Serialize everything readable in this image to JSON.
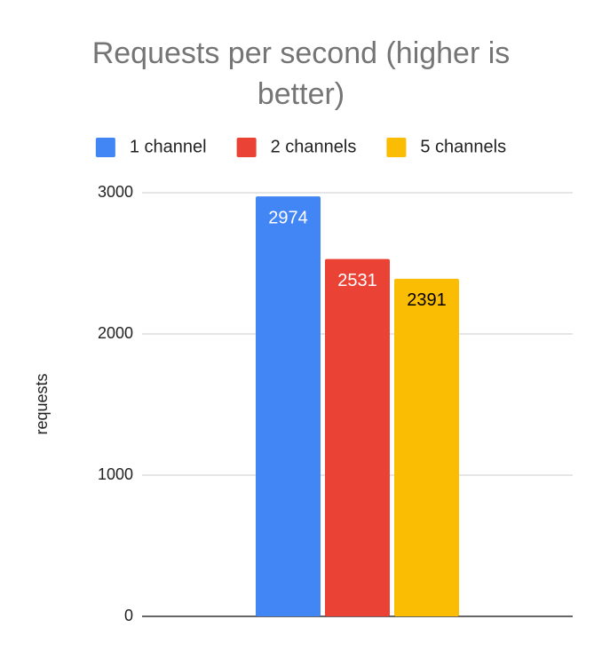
{
  "chart_data": {
    "type": "bar",
    "title": "Requests per second (higher is better)",
    "y_label": "requests",
    "categories": [
      null
    ],
    "series": [
      {
        "name": "1 channel",
        "color": "#4285f4",
        "label_color": "#ffffff",
        "values": [
          2974
        ]
      },
      {
        "name": "2 channels",
        "color": "#ea4335",
        "label_color": "#ffffff",
        "values": [
          2531
        ]
      },
      {
        "name": "5 channels",
        "color": "#fbbc04",
        "label_color": "#000000",
        "values": [
          2391
        ]
      }
    ],
    "ylim": [
      0,
      3000
    ],
    "yticks": [
      0,
      1000,
      2000,
      3000
    ],
    "grid": true,
    "legend": "top"
  }
}
